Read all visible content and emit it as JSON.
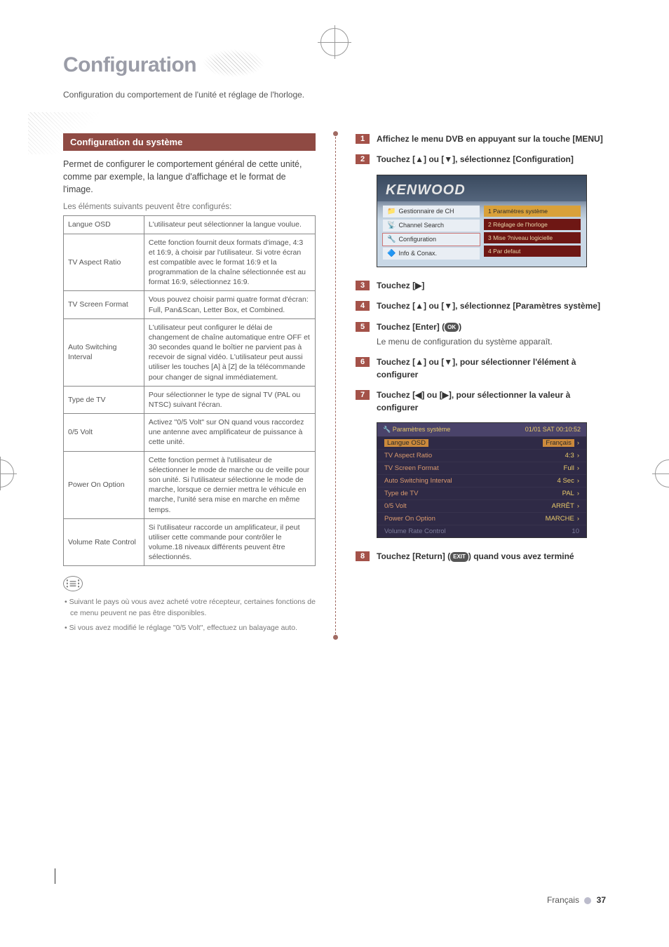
{
  "page": {
    "title": "Configuration",
    "subtitle": "Configuration du comportement de l'unité et réglage de l'horloge.",
    "footer_label": "Français",
    "footer_page": "37"
  },
  "section": {
    "heading": "Configuration du système",
    "intro": "Permet de configurer le comportement général de cette unité, comme par exemple, la langue d'affichage et le format de l'image.",
    "table_caption": "Les éléments suivants peuvent être configurés:"
  },
  "settings_table": {
    "rows": [
      {
        "name": "Langue OSD",
        "desc": "L'utilisateur peut sélectionner la langue voulue."
      },
      {
        "name": "TV Aspect Ratio",
        "desc": "Cette fonction fournit deux formats d'image, 4:3 et 16:9, à choisir par l'utilisateur. Si votre écran est compatible avec le format 16:9 et la programmation de la chaîne sélectionnée est au format 16:9, sélectionnez 16:9."
      },
      {
        "name": "TV Screen Format",
        "desc": "Vous pouvez choisir parmi quatre format d'écran: Full, Pan&Scan, Letter Box, et Combined."
      },
      {
        "name": "Auto Switching Interval",
        "desc": "L'utilisateur peut configurer le délai de changement de chaîne automatique entre OFF et 30 secondes quand le boîtier ne parvient pas à recevoir de signal vidéo. L'utilisateur peut aussi utiliser les touches [A] à [Z] de la télécommande pour changer de signal immédiatement."
      },
      {
        "name": "Type de TV",
        "desc": "Pour sélectionner le type de signal TV (PAL ou NTSC) suivant l'écran."
      },
      {
        "name": "0/5 Volt",
        "desc": "Activez \"0/5 Volt\" sur ON quand vous raccordez une antenne avec amplificateur de puissance à cette unité."
      },
      {
        "name": "Power On Option",
        "desc": "Cette fonction permet à l'utilisateur de sélectionner le mode de marche ou de veille pour son unité. Si l'utilisateur sélectionne le mode de marche, lorsque ce dernier mettra le véhicule en marche, l'unité sera mise en marche en même temps."
      },
      {
        "name": "Volume Rate Control",
        "desc": "Si l'utilisateur raccorde un amplificateur, il peut utiliser cette commande pour contrôler le volume.18 niveaux différents peuvent être sélectionnés."
      }
    ]
  },
  "notes": [
    "Suivant le pays où vous avez acheté votre récepteur, certaines fonctions de ce menu peuvent ne pas être disponibles.",
    "Si vous avez modifié le réglage \"0/5 Volt\", effectuez un balayage auto."
  ],
  "steps": {
    "s1": "Affichez le menu DVB en appuyant sur la touche [MENU]",
    "s2": "Touchez [▲] ou [▼], sélectionnez [Configuration]",
    "s3": "Touchez [▶]",
    "s4": "Touchez [▲] ou [▼], sélectionnez [Paramètres système]",
    "s5": "Touchez [Enter] (",
    "s5_key": "OK",
    "s5_tail": ")",
    "s5_sub": "Le menu de configuration du système apparaît.",
    "s6": "Touchez [▲] ou [▼], pour sélectionner l'élément à configurer",
    "s7": "Touchez [◀] ou [▶], pour sélectionner la valeur à configurer",
    "s8": "Touchez [Return] (",
    "s8_key": "EXIT",
    "s8_tail": ") quand vous avez terminé"
  },
  "screenshot1": {
    "brand": "KENWOOD",
    "left_items": [
      {
        "icon": "📁",
        "label": "Gestionnaire de CH",
        "sel": false
      },
      {
        "icon": "📡",
        "label": "Channel Search",
        "sel": false
      },
      {
        "icon": "🔧",
        "label": "Configuration",
        "sel": true
      },
      {
        "icon": "🔷",
        "label": "Info & Conax.",
        "sel": false
      }
    ],
    "right_items": [
      {
        "label": "1 Paramètres système",
        "sel": true
      },
      {
        "label": "2 Réglage de l'horloge",
        "sel": false
      },
      {
        "label": "3 Mise ?niveau logicielle",
        "sel": false
      },
      {
        "label": "4 Par defaut",
        "sel": false
      }
    ]
  },
  "screenshot2": {
    "header_left": "🔧  Paramètres système",
    "header_right": "01/01 SAT  00:10:52",
    "rows": [
      {
        "label": "Langue OSD",
        "value": "Français",
        "sel": true,
        "arrow": true
      },
      {
        "label": "TV Aspect Ratio",
        "value": "4:3",
        "arrow": true
      },
      {
        "label": "TV Screen Format",
        "value": "Full",
        "arrow": true
      },
      {
        "label": "Auto Switching Interval",
        "value": "4 Sec",
        "arrow": true
      },
      {
        "label": "Type de TV",
        "value": "PAL",
        "arrow": true
      },
      {
        "label": "0/5 Volt",
        "value": "ARRÊT",
        "arrow": true
      },
      {
        "label": "Power On Option",
        "value": "MARCHE",
        "arrow": true
      },
      {
        "label": "Volume Rate Control",
        "value": "10",
        "dim": true
      }
    ]
  }
}
